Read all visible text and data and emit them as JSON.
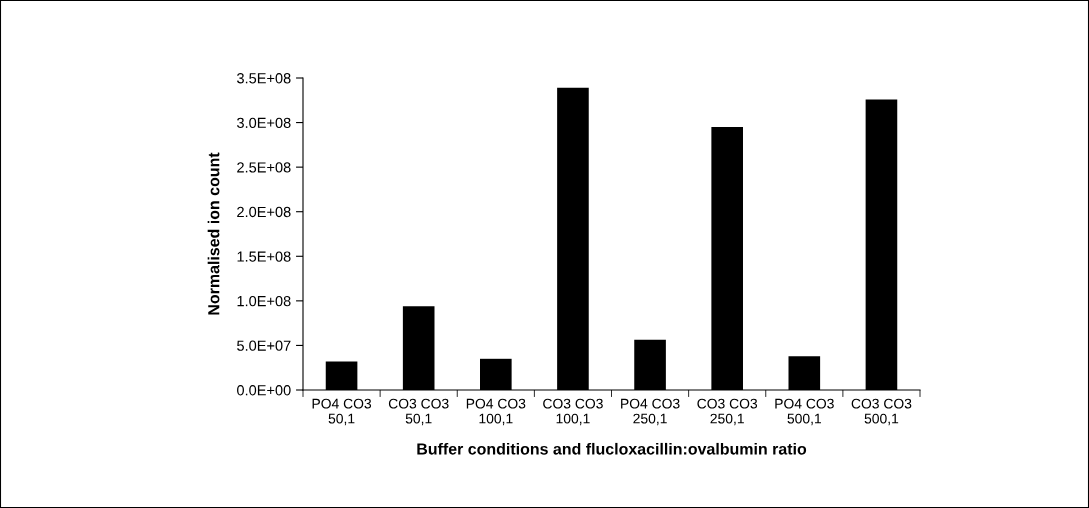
{
  "chart_data": {
    "type": "bar",
    "xlabel": "Buffer conditions and flucloxacillin:ovalbumin ratio",
    "ylabel": "Normalised ion count",
    "categories": [
      "PO4 CO3\n50,1",
      "CO3 CO3\n50,1",
      "PO4 CO3\n100,1",
      "CO3 CO3\n100,1",
      "PO4 CO3\n250,1",
      "CO3 CO3\n250,1",
      "PO4 CO3\n500,1",
      "CO3 CO3\n500,1"
    ],
    "values": [
      32000000,
      94000000,
      35000000,
      339000000,
      56500000,
      295000000,
      38000000,
      326000000
    ],
    "color": "#000000",
    "ylim": [
      0,
      350000000
    ],
    "yticks": [
      {
        "value": 0,
        "label": "0.0E+00"
      },
      {
        "value": 50000000,
        "label": "5.0E+07"
      },
      {
        "value": 100000000,
        "label": "1.0E+08"
      },
      {
        "value": 150000000,
        "label": "1.5E+08"
      },
      {
        "value": 200000000,
        "label": "2.0E+08"
      },
      {
        "value": 250000000,
        "label": "2.5E+08"
      },
      {
        "value": 300000000,
        "label": "3.0E+08"
      },
      {
        "value": 350000000,
        "label": "3.5E+08"
      }
    ],
    "grid": false
  }
}
